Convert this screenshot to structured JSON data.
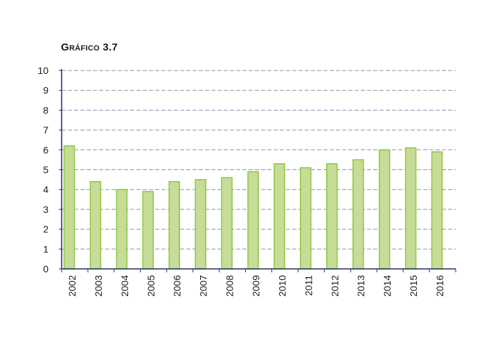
{
  "chart_title": "Gráfico 3.7",
  "colors": {
    "bar_fill": "#c6dc97",
    "bar_stroke": "#8dc63f",
    "grid": "#8a8fb3",
    "axis": "#1f2a5a"
  },
  "chart_data": {
    "type": "bar",
    "title": "Gráfico 3.7",
    "xlabel": "",
    "ylabel": "",
    "categories": [
      "2002",
      "2003",
      "2004",
      "2005",
      "2006",
      "2007",
      "2008",
      "2009",
      "2010",
      "2011",
      "2012",
      "2013",
      "2014",
      "2015",
      "2016"
    ],
    "values": [
      6.2,
      4.4,
      4.0,
      3.9,
      4.4,
      4.5,
      4.6,
      4.9,
      5.3,
      5.1,
      5.3,
      5.5,
      6.0,
      6.1,
      5.9
    ],
    "ylim": [
      0,
      10
    ],
    "yticks": [
      "0",
      "1",
      "2",
      "3",
      "4",
      "5",
      "6",
      "7",
      "8",
      "9",
      "10"
    ],
    "grid": true,
    "legend": "none"
  }
}
